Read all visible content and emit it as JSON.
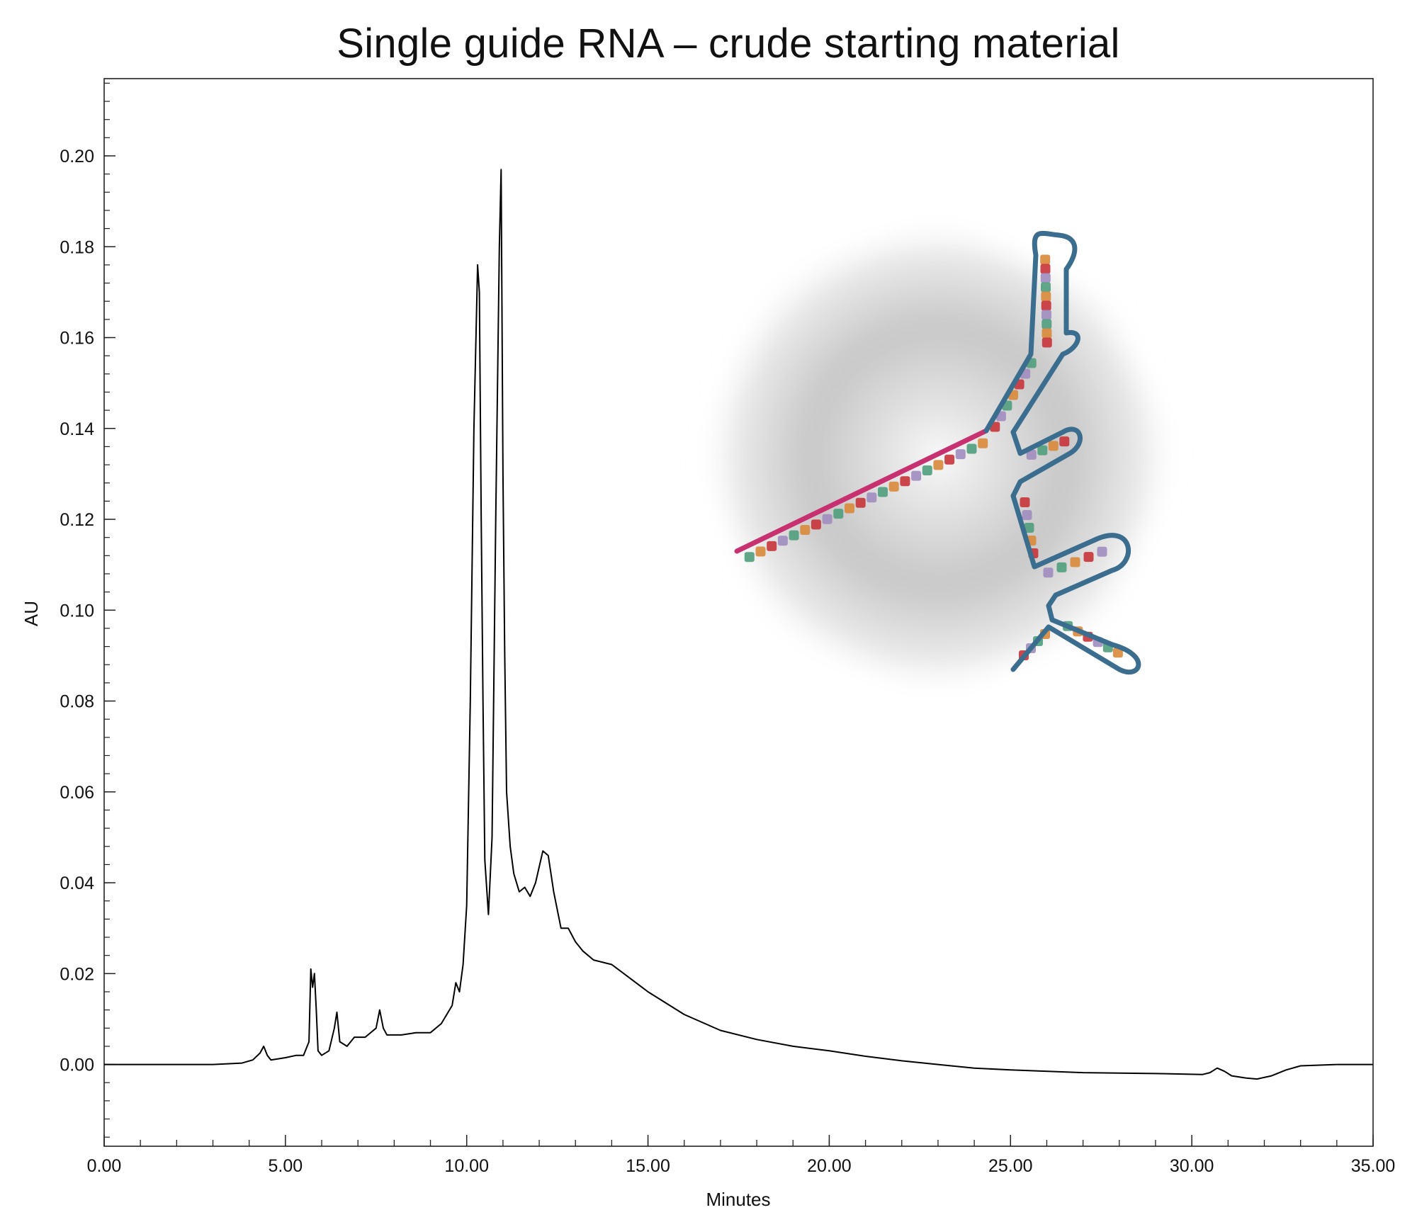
{
  "chart_data": {
    "type": "line",
    "title": "Single guide RNA – crude starting material",
    "xlabel": "Minutes",
    "ylabel": "AU",
    "xlim": [
      0,
      35
    ],
    "ylim": [
      -0.018,
      0.217
    ],
    "x_ticks": [
      0,
      5,
      10,
      15,
      20,
      25,
      30,
      35
    ],
    "x_tick_labels": [
      "0.00",
      "5.00",
      "10.00",
      "15.00",
      "20.00",
      "25.00",
      "30.00",
      "35.00"
    ],
    "x_minor_step": 1,
    "y_ticks": [
      0,
      0.02,
      0.04,
      0.06,
      0.08,
      0.1,
      0.12,
      0.14,
      0.16,
      0.18,
      0.2
    ],
    "y_tick_labels": [
      "0.00",
      "0.02",
      "0.04",
      "0.06",
      "0.08",
      "0.10",
      "0.12",
      "0.14",
      "0.16",
      "0.18",
      "0.20"
    ],
    "y_minor_step": 0.004,
    "grid": false,
    "legend": "none",
    "series": [
      {
        "color": "#000000",
        "x": [
          0.0,
          1.0,
          2.0,
          3.0,
          3.8,
          4.1,
          4.3,
          4.4,
          4.5,
          4.6,
          5.0,
          5.3,
          5.5,
          5.65,
          5.7,
          5.75,
          5.8,
          5.85,
          5.9,
          6.0,
          6.2,
          6.35,
          6.42,
          6.5,
          6.7,
          6.9,
          7.2,
          7.5,
          7.6,
          7.7,
          7.8,
          8.2,
          8.6,
          9.0,
          9.3,
          9.6,
          9.7,
          9.8,
          9.9,
          10.0,
          10.1,
          10.2,
          10.3,
          10.35,
          10.4,
          10.45,
          10.5,
          10.6,
          10.7,
          10.8,
          10.9,
          10.95,
          11.0,
          11.05,
          11.1,
          11.2,
          11.3,
          11.45,
          11.6,
          11.75,
          11.9,
          12.1,
          12.25,
          12.4,
          12.6,
          12.8,
          13.0,
          13.2,
          13.5,
          14.0,
          14.5,
          15.0,
          16.0,
          17.0,
          18.0,
          19.0,
          20.0,
          21.0,
          22.0,
          23.0,
          24.0,
          25.0,
          27.0,
          29.0,
          30.3,
          30.5,
          30.7,
          30.9,
          31.1,
          31.5,
          31.8,
          32.2,
          32.6,
          33.0,
          34.0,
          35.0
        ],
        "y": [
          0.0,
          0.0,
          0.0,
          0.0,
          0.0003,
          0.001,
          0.0025,
          0.004,
          0.002,
          0.001,
          0.0015,
          0.002,
          0.002,
          0.005,
          0.021,
          0.017,
          0.02,
          0.012,
          0.003,
          0.002,
          0.003,
          0.008,
          0.0115,
          0.005,
          0.004,
          0.006,
          0.006,
          0.008,
          0.012,
          0.008,
          0.0065,
          0.0065,
          0.007,
          0.007,
          0.009,
          0.013,
          0.018,
          0.016,
          0.022,
          0.035,
          0.08,
          0.14,
          0.176,
          0.17,
          0.12,
          0.08,
          0.045,
          0.033,
          0.05,
          0.12,
          0.18,
          0.197,
          0.13,
          0.09,
          0.06,
          0.048,
          0.042,
          0.038,
          0.039,
          0.037,
          0.04,
          0.047,
          0.046,
          0.038,
          0.03,
          0.03,
          0.027,
          0.025,
          0.023,
          0.022,
          0.019,
          0.016,
          0.011,
          0.0075,
          0.0055,
          0.004,
          0.003,
          0.0018,
          0.0008,
          0.0,
          -0.0008,
          -0.0012,
          -0.0018,
          -0.002,
          -0.0022,
          -0.0018,
          -0.0008,
          -0.0015,
          -0.0025,
          -0.003,
          -0.0032,
          -0.0025,
          -0.0012,
          -0.0003,
          0.0,
          0.0
        ]
      }
    ]
  },
  "illustration": {
    "subject": "sgRNA secondary structure",
    "nucleotide_colors": [
      "#4f9e7c",
      "#d9893b",
      "#c8343a",
      "#a08cc0"
    ],
    "guide_strand_color": "#c8316f",
    "backbone_color": "#3b6d8e",
    "halo_color": "#c4c4c4"
  }
}
